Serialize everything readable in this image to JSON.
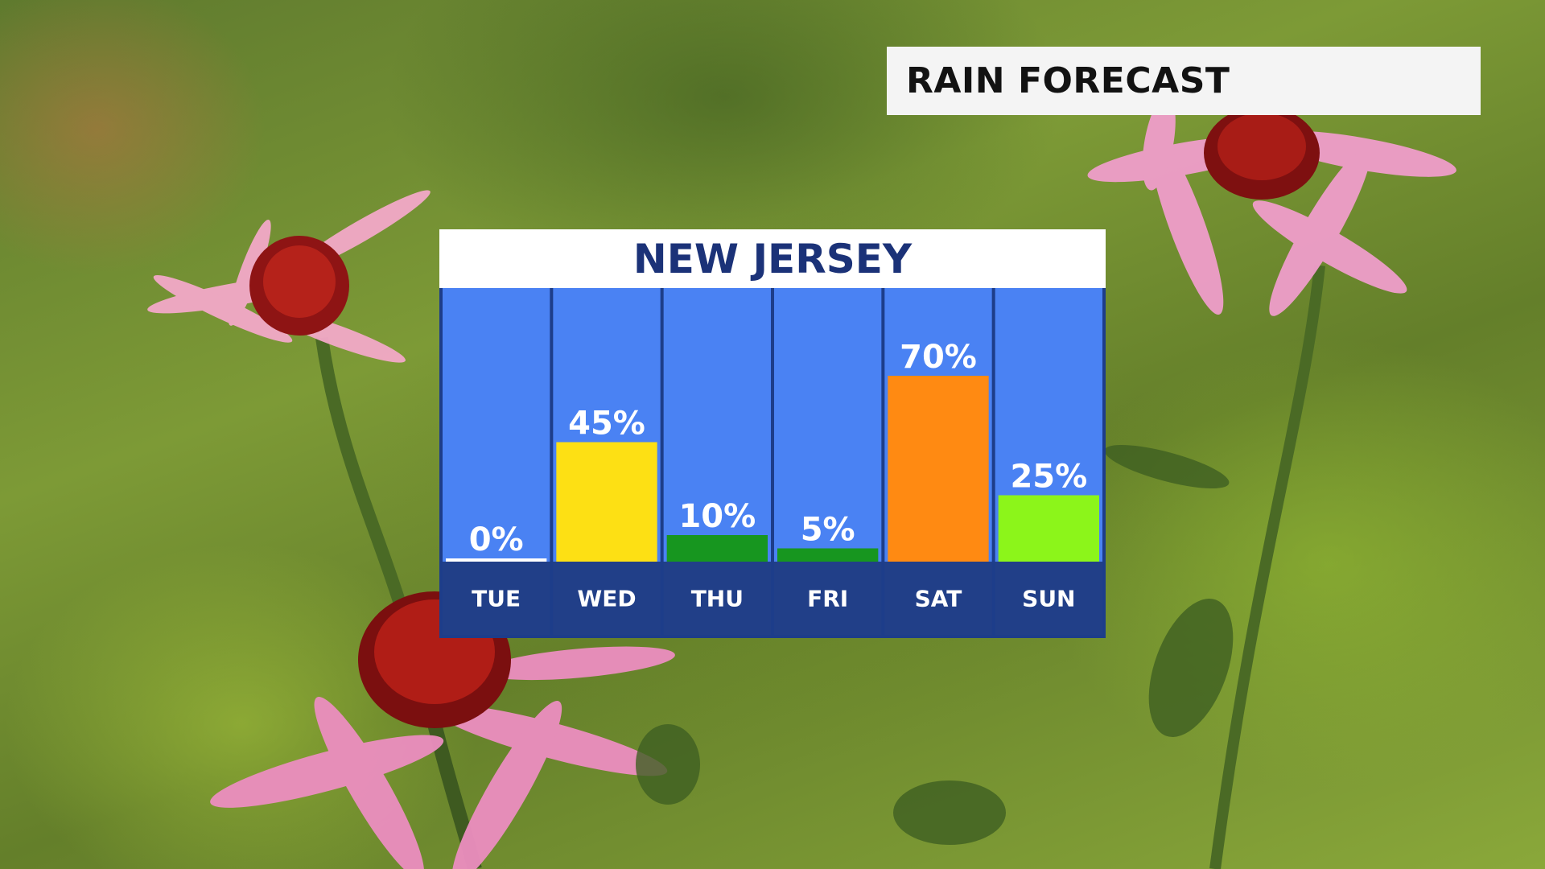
{
  "header": {
    "title": "RAIN FORECAST"
  },
  "panel": {
    "title": "NEW JERSEY"
  },
  "colors": {
    "column_bg": "#4a82f3",
    "label_row_bg": "#213f88",
    "border": "#1d3d8a",
    "title_color": "#1b3278"
  },
  "chart_data": {
    "type": "bar",
    "title": "NEW JERSEY",
    "categories": [
      "TUE",
      "WED",
      "THU",
      "FRI",
      "SAT",
      "SUN"
    ],
    "values": [
      0,
      45,
      10,
      5,
      70,
      25
    ],
    "value_labels": [
      "0%",
      "45%",
      "10%",
      "5%",
      "70%",
      "25%"
    ],
    "bar_colors": [
      "#ffffff",
      "#fde014",
      "#17961f",
      "#17961f",
      "#ff8a12",
      "#8cf51a"
    ],
    "ylim": [
      0,
      100
    ],
    "unit": "%"
  }
}
